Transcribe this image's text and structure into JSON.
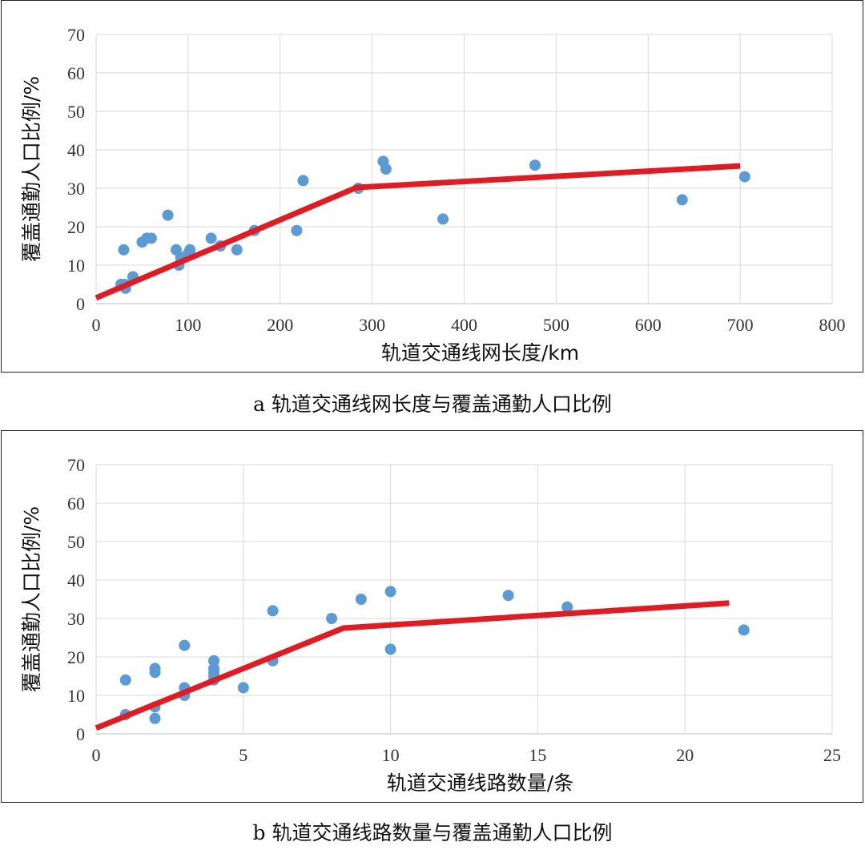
{
  "charts": {
    "a": {
      "caption": "a 轨道交通线网长度与覆盖通勤人口比例",
      "chart_data": {
        "type": "scatter",
        "xlabel": "轨道交通线网长度/km",
        "ylabel": "覆盖通勤人口比例/%",
        "xlim": [
          0,
          800
        ],
        "ylim": [
          0,
          70
        ],
        "xticks": [
          "0",
          "100",
          "200",
          "300",
          "400",
          "500",
          "600",
          "700",
          "800"
        ],
        "yticks": [
          "0",
          "10",
          "20",
          "30",
          "40",
          "50",
          "60",
          "70"
        ],
        "grid": true,
        "points": [
          [
            27,
            5
          ],
          [
            30,
            14
          ],
          [
            31,
            5
          ],
          [
            32,
            4
          ],
          [
            40,
            7
          ],
          [
            50,
            16
          ],
          [
            55,
            17
          ],
          [
            60,
            17
          ],
          [
            78,
            23
          ],
          [
            87,
            14
          ],
          [
            90,
            10
          ],
          [
            92,
            12
          ],
          [
            100,
            13
          ],
          [
            102,
            14
          ],
          [
            125,
            17
          ],
          [
            135,
            15
          ],
          [
            153,
            14
          ],
          [
            172,
            19
          ],
          [
            218,
            19
          ],
          [
            225,
            32
          ],
          [
            285,
            30
          ],
          [
            312,
            37
          ],
          [
            315,
            35
          ],
          [
            377,
            22
          ],
          [
            477,
            36
          ],
          [
            637,
            27
          ],
          [
            705,
            33
          ]
        ],
        "fit_line": [
          [
            0,
            1.5
          ],
          [
            283,
            30.2
          ],
          [
            700,
            35.8
          ]
        ],
        "point_color": "#5b9bd5",
        "line_color": "#e21b22"
      }
    },
    "b": {
      "caption": "b 轨道交通线路数量与覆盖通勤人口比例",
      "chart_data": {
        "type": "scatter",
        "xlabel": "轨道交通线路数量/条",
        "ylabel": "覆盖通勤人口比例/%",
        "xlim": [
          0,
          25
        ],
        "ylim": [
          0,
          70
        ],
        "xticks": [
          "0",
          "5",
          "10",
          "15",
          "20",
          "25"
        ],
        "yticks": [
          "0",
          "10",
          "20",
          "30",
          "40",
          "50",
          "60",
          "70"
        ],
        "grid": true,
        "points": [
          [
            1,
            14
          ],
          [
            1,
            5
          ],
          [
            2,
            17
          ],
          [
            2,
            16
          ],
          [
            2,
            7
          ],
          [
            2,
            4
          ],
          [
            3,
            23
          ],
          [
            3,
            12
          ],
          [
            3,
            10
          ],
          [
            4,
            19
          ],
          [
            4,
            17
          ],
          [
            4,
            16
          ],
          [
            4,
            15
          ],
          [
            4,
            14
          ],
          [
            5,
            12
          ],
          [
            6,
            32
          ],
          [
            6,
            19
          ],
          [
            8,
            30
          ],
          [
            9,
            35
          ],
          [
            10,
            37
          ],
          [
            10,
            22
          ],
          [
            14,
            36
          ],
          [
            16,
            33
          ],
          [
            22,
            27
          ]
        ],
        "fit_line": [
          [
            0,
            1.5
          ],
          [
            8.4,
            27.5
          ],
          [
            21.5,
            34
          ]
        ],
        "point_color": "#5b9bd5",
        "line_color": "#e21b22"
      }
    }
  }
}
